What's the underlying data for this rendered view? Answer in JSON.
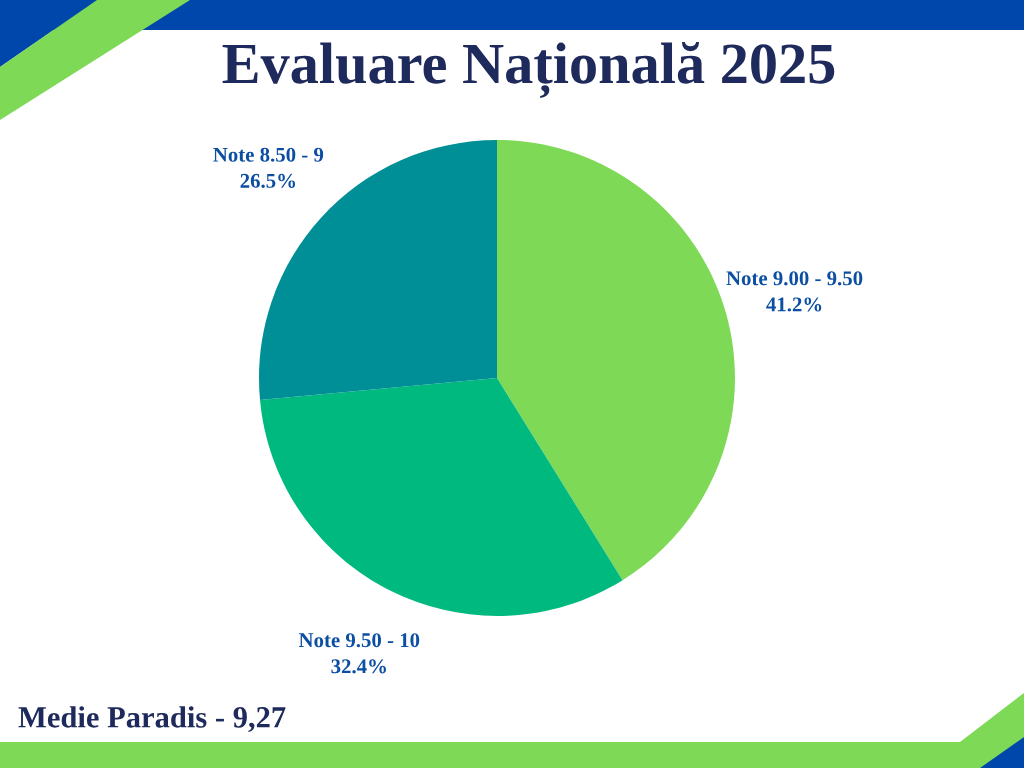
{
  "chart_data": {
    "type": "pie",
    "title": "Evaluare Națională 2025",
    "categories": [
      "Note 9.00 - 9.50",
      "Note 9.50 - 10",
      "Note 8.50 - 9"
    ],
    "values": [
      41.2,
      32.4,
      26.5
    ],
    "colors": [
      "#7ed957",
      "#00b97e",
      "#008f96"
    ],
    "value_labels": [
      "41.2%",
      "32.4%",
      "26.5%"
    ],
    "annotations": [
      "Medie Paradis - 9,27"
    ]
  }
}
